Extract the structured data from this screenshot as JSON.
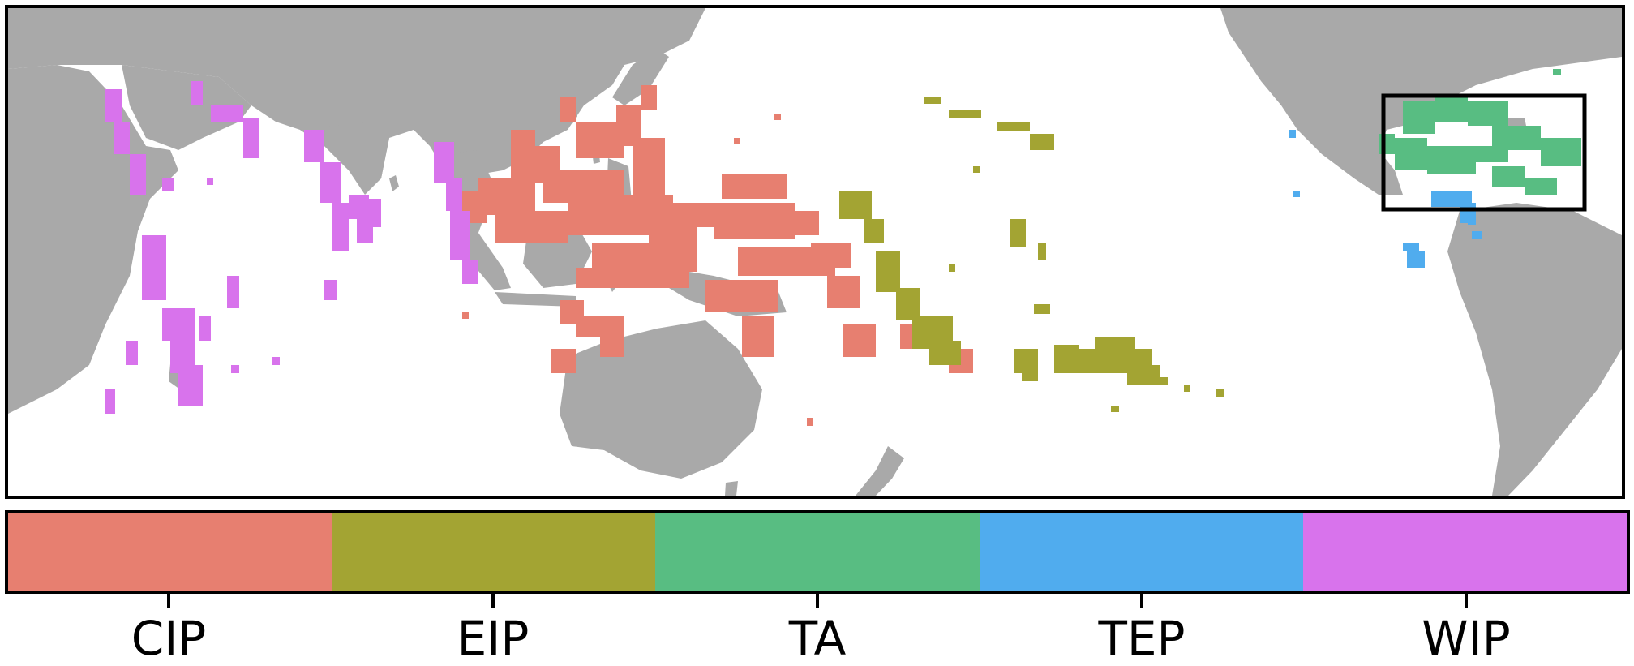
{
  "map": {
    "land_color": "#a9a9a9",
    "ocean_color": "#ffffff",
    "highlight_box": "Caribbean region outlined"
  },
  "legend": {
    "categories": [
      {
        "label": "CIP",
        "color": "#e77f70"
      },
      {
        "label": "EIP",
        "color": "#a3a433"
      },
      {
        "label": "TA",
        "color": "#58bd82"
      },
      {
        "label": "TEP",
        "color": "#50acee"
      },
      {
        "label": "WIP",
        "color": "#d873ec"
      }
    ]
  }
}
